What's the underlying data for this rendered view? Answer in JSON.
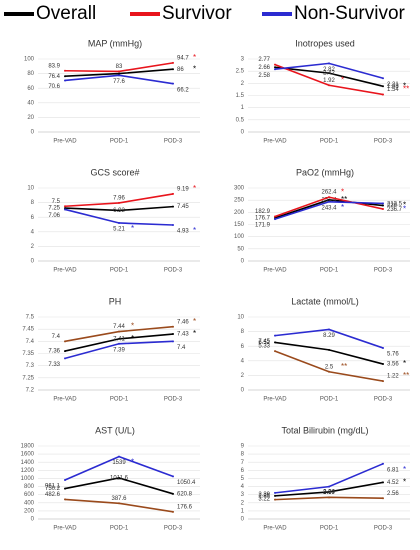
{
  "chart_data": [
    {
      "type": "line",
      "title": "MAP (mmHg)",
      "categories": [
        "Pre-VAD",
        "POD-1",
        "POD-3"
      ],
      "ylim": [
        0,
        100
      ],
      "yticks": [
        0,
        20,
        40,
        60,
        80,
        100
      ],
      "grid": true,
      "series": [
        {
          "name": "Overall",
          "color": "#000000",
          "values": [
            76.4,
            80,
            86
          ],
          "value_labels": [
            "76.4",
            null,
            "86"
          ],
          "stars": [
            null,
            null,
            "*"
          ]
        },
        {
          "name": "Survivor",
          "color": "#e8141c",
          "values": [
            83.9,
            83,
            94.7
          ],
          "value_labels": [
            "83.9",
            "83",
            "94.7"
          ],
          "stars": [
            null,
            null,
            "*"
          ]
        },
        {
          "name": "Non-Survivor",
          "color": "#2b2bd1",
          "values": [
            70.6,
            77.6,
            66.2
          ],
          "value_labels": [
            "70.6",
            "77.6",
            "66.2"
          ],
          "stars": [
            null,
            null,
            null
          ]
        }
      ]
    },
    {
      "type": "line",
      "title": "Inotropes used",
      "categories": [
        "Pre-VAD",
        "POD-1",
        "POD-3"
      ],
      "ylim": [
        0,
        3
      ],
      "yticks": [
        0,
        0.5,
        1,
        1.5,
        2,
        2.5,
        3
      ],
      "grid": true,
      "series": [
        {
          "name": "Overall",
          "color": "#000000",
          "values": [
            2.66,
            2.42,
            1.88
          ],
          "value_labels": [
            "2.66",
            "2.42",
            "1.88"
          ],
          "stars": [
            null,
            null,
            "*"
          ]
        },
        {
          "name": "Survivor",
          "color": "#e8141c",
          "values": [
            2.77,
            1.92,
            1.54
          ],
          "value_labels": [
            "2.77",
            "1.92",
            "1.54"
          ],
          "stars": [
            null,
            "*",
            "**"
          ]
        },
        {
          "name": "Non-Survivor",
          "color": "#2b2bd1",
          "values": [
            2.58,
            2.82,
            2.21
          ],
          "value_labels": [
            "2.58",
            "2.82",
            "2.21"
          ],
          "stars": [
            null,
            null,
            null
          ]
        }
      ]
    },
    {
      "type": "line",
      "title": "GCS score#",
      "categories": [
        "Pre-VAD",
        "POD-1",
        "POD-3"
      ],
      "ylim": [
        0,
        10
      ],
      "yticks": [
        0,
        2,
        4,
        6,
        8,
        10
      ],
      "grid": true,
      "series": [
        {
          "name": "Overall",
          "color": "#000000",
          "values": [
            7.25,
            6.92,
            7.45
          ],
          "value_labels": [
            "7.25",
            "6.92",
            "7.45"
          ],
          "stars": [
            null,
            null,
            null
          ]
        },
        {
          "name": "Survivor",
          "color": "#e8141c",
          "values": [
            7.5,
            7.96,
            9.19
          ],
          "value_labels": [
            "7.5",
            "7.96",
            "9.19"
          ],
          "stars": [
            null,
            null,
            "*"
          ]
        },
        {
          "name": "Non-Survivor",
          "color": "#2b2bd1",
          "values": [
            7.06,
            5.21,
            4.93
          ],
          "value_labels": [
            "7.06",
            "5.21",
            "4.93"
          ],
          "stars": [
            null,
            "*",
            "*"
          ]
        }
      ]
    },
    {
      "type": "line",
      "title": "PaO2 (mmHg)",
      "categories": [
        "Pre-VAD",
        "POD-1",
        "POD-3"
      ],
      "ylim": [
        0,
        300
      ],
      "yticks": [
        0,
        50,
        100,
        150,
        200,
        250,
        300
      ],
      "grid": true,
      "series": [
        {
          "name": "Overall",
          "color": "#000000",
          "values": [
            176.7,
            251.4,
            228
          ],
          "value_labels": [
            "176.7",
            "251.4",
            "228"
          ],
          "stars": [
            null,
            "**",
            "*"
          ]
        },
        {
          "name": "Survivor",
          "color": "#e8141c",
          "values": [
            182.9,
            262.4,
            213.5
          ],
          "value_labels": [
            "182.9",
            "262.4",
            "213.5"
          ],
          "stars": [
            null,
            "*",
            null
          ]
        },
        {
          "name": "Non-Survivor",
          "color": "#2b2bd1",
          "values": [
            171.9,
            243.4,
            236.7
          ],
          "value_labels": [
            "171.9",
            "243.4",
            "236.7"
          ],
          "stars": [
            null,
            "*",
            "*"
          ]
        }
      ]
    },
    {
      "type": "line",
      "title": "PH",
      "categories": [
        "Pre-VAD",
        "POD-1",
        "POD-3"
      ],
      "ylim": [
        7.2,
        7.5
      ],
      "yticks": [
        7.2,
        7.25,
        7.3,
        7.35,
        7.4,
        7.45,
        7.5
      ],
      "grid": true,
      "series": [
        {
          "name": "Overall",
          "color": "#000000",
          "values": [
            7.36,
            7.41,
            7.43
          ],
          "value_labels": [
            "7.36",
            "7.41",
            "7.43"
          ],
          "stars": [
            null,
            "*",
            "*"
          ]
        },
        {
          "name": "Survivor",
          "color": "#9a4a1c",
          "values": [
            7.4,
            7.44,
            7.46
          ],
          "value_labels": [
            "7.4",
            "7.44",
            "7.46"
          ],
          "stars": [
            null,
            "*",
            "*"
          ]
        },
        {
          "name": "Non-Survivor",
          "color": "#2b2bd1",
          "values": [
            7.33,
            7.39,
            7.4
          ],
          "value_labels": [
            "7.33",
            "7.39",
            "7.4"
          ],
          "stars": [
            null,
            null,
            null
          ]
        }
      ]
    },
    {
      "type": "line",
      "title": "Lactate (mmol/L)",
      "categories": [
        "Pre-VAD",
        "POD-1",
        "POD-3"
      ],
      "ylim": [
        0,
        10
      ],
      "yticks": [
        0,
        2,
        4,
        6,
        8,
        10
      ],
      "grid": true,
      "series": [
        {
          "name": "Overall",
          "color": "#000000",
          "values": [
            6.52,
            5.5,
            3.56
          ],
          "value_labels": [
            "6.52",
            null,
            "3.56"
          ],
          "stars": [
            null,
            null,
            "*"
          ]
        },
        {
          "name": "Survivor",
          "color": "#9a4a1c",
          "values": [
            5.33,
            2.5,
            1.22
          ],
          "value_labels": [
            "5.33",
            "2.5",
            "1.22"
          ],
          "stars": [
            null,
            "**",
            "**"
          ]
        },
        {
          "name": "Non-Survivor",
          "color": "#2b2bd1",
          "values": [
            7.45,
            8.29,
            5.76
          ],
          "value_labels": [
            "7.45",
            "8.29",
            "5.76"
          ],
          "stars": [
            null,
            null,
            null
          ]
        }
      ]
    },
    {
      "type": "line",
      "title": "AST (U/L)",
      "categories": [
        "Pre-VAD",
        "POD-1",
        "POD-3"
      ],
      "ylim": [
        0,
        1800
      ],
      "yticks": [
        0,
        200,
        400,
        600,
        800,
        1000,
        1200,
        1400,
        1600,
        1800
      ],
      "grid": true,
      "series": [
        {
          "name": "Overall",
          "color": "#000000",
          "values": [
            750.2,
            1011.6,
            620.8
          ],
          "value_labels": [
            "750.2",
            "1011.6",
            "620.8"
          ],
          "stars": [
            null,
            null,
            null
          ]
        },
        {
          "name": "Survivor",
          "color": "#9a4a1c",
          "values": [
            482.6,
            387.6,
            176.6
          ],
          "value_labels": [
            "482.6",
            "387.6",
            "176.6"
          ],
          "stars": [
            null,
            null,
            null
          ]
        },
        {
          "name": "Non-Survivor",
          "color": "#2b2bd1",
          "values": [
            961.1,
            1539,
            1050.4
          ],
          "value_labels": [
            "961.1",
            "1539",
            "1050.4"
          ],
          "stars": [
            null,
            "*",
            null
          ]
        }
      ]
    },
    {
      "type": "line",
      "title": "Total Bilirubin (mg/dL)",
      "categories": [
        "Pre-VAD",
        "POD-1",
        "POD-3"
      ],
      "ylim": [
        0,
        9
      ],
      "yticks": [
        0,
        1,
        2,
        3,
        4,
        5,
        6,
        7,
        8,
        9
      ],
      "grid": true,
      "series": [
        {
          "name": "Overall",
          "color": "#000000",
          "values": [
            2.85,
            3.34,
            4.52
          ],
          "value_labels": [
            "2.85",
            "3.34",
            "4.52"
          ],
          "stars": [
            null,
            null,
            "*"
          ]
        },
        {
          "name": "Survivor",
          "color": "#9a4a1c",
          "values": [
            2.39,
            2.67,
            2.56
          ],
          "value_labels": [
            "2.39",
            "2.67",
            "2.56"
          ],
          "stars": [
            null,
            null,
            null
          ]
        },
        {
          "name": "Non-Survivor",
          "color": "#2b2bd1",
          "values": [
            3.22,
            3.99,
            6.81
          ],
          "value_labels": [
            "3.22",
            "3.99",
            "6.81"
          ],
          "stars": [
            null,
            null,
            "*"
          ]
        }
      ]
    }
  ]
}
